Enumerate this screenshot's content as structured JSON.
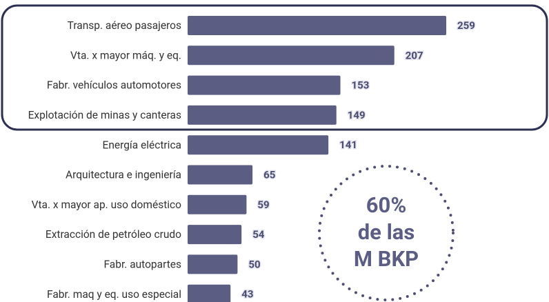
{
  "chart_data": {
    "type": "barh",
    "categories": [
      "Transp. aéreo pasajeros",
      "Vta. x mayor máq. y eq.",
      "Fabr. vehículos automotores",
      "Explotación de minas y canteras",
      "Energía eléctrica",
      "Arquitectura e ingeniería",
      "Vta. x mayor ap. uso doméstico",
      "Extracción de petróleo crudo",
      "Fabr. autopartes",
      "Fabr. maq y eq. uso especial"
    ],
    "values": [
      259,
      207,
      153,
      149,
      141,
      65,
      59,
      54,
      50,
      43
    ],
    "color": "#5b5e82",
    "annotation": [
      "60%",
      "de las",
      "M BKP"
    ]
  }
}
